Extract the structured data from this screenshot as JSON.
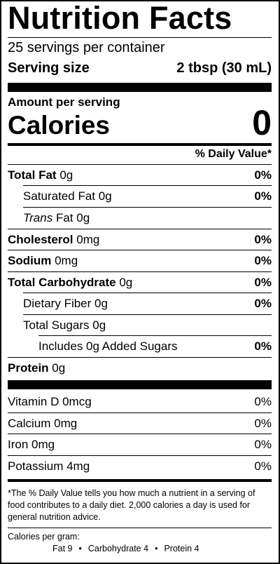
{
  "title": "Nutrition Facts",
  "servings": "25 servings per container",
  "serving_size": {
    "label": "Serving size",
    "value": "2 tbsp (30 mL)"
  },
  "amount_per_serving": "Amount per serving",
  "calories": {
    "label": "Calories",
    "value": "0"
  },
  "daily_value_header": "% Daily Value*",
  "nutrients": {
    "total_fat": {
      "name": "Total Fat",
      "amount": "0g",
      "dv": "0%"
    },
    "saturated_fat": {
      "name": "Saturated Fat",
      "amount": "0g",
      "dv": "0%"
    },
    "trans_fat": {
      "name": "Trans",
      "suffix": "Fat",
      "amount": "0g"
    },
    "cholesterol": {
      "name": "Cholesterol",
      "amount": "0mg",
      "dv": "0%"
    },
    "sodium": {
      "name": "Sodium",
      "amount": "0mg",
      "dv": "0%"
    },
    "total_carbohydrate": {
      "name": "Total Carbohydrate",
      "amount": "0g",
      "dv": "0%"
    },
    "dietary_fiber": {
      "name": "Dietary Fiber",
      "amount": "0g",
      "dv": "0%"
    },
    "total_sugars": {
      "name": "Total Sugars",
      "amount": "0g"
    },
    "added_sugars": {
      "name": "Includes 0g Added Sugars",
      "dv": "0%"
    },
    "protein": {
      "name": "Protein",
      "amount": "0g"
    }
  },
  "vitamins": [
    {
      "name": "Vitamin D 0mcg",
      "dv": "0%"
    },
    {
      "name": "Calcium 0mg",
      "dv": "0%"
    },
    {
      "name": "Iron 0mg",
      "dv": "0%"
    },
    {
      "name": "Potassium 4mg",
      "dv": "0%"
    }
  ],
  "footnote": "*The % Daily Value tells you how much a nutrient in a serving of food contributes to a daily diet. 2,000 calories a day is used for general nutrition advice.",
  "calories_per_gram": {
    "label": "Calories per gram:",
    "fat": "Fat 9",
    "carbohydrate": "Carbohydrate 4",
    "protein": "Protein 4",
    "separator": "•"
  }
}
